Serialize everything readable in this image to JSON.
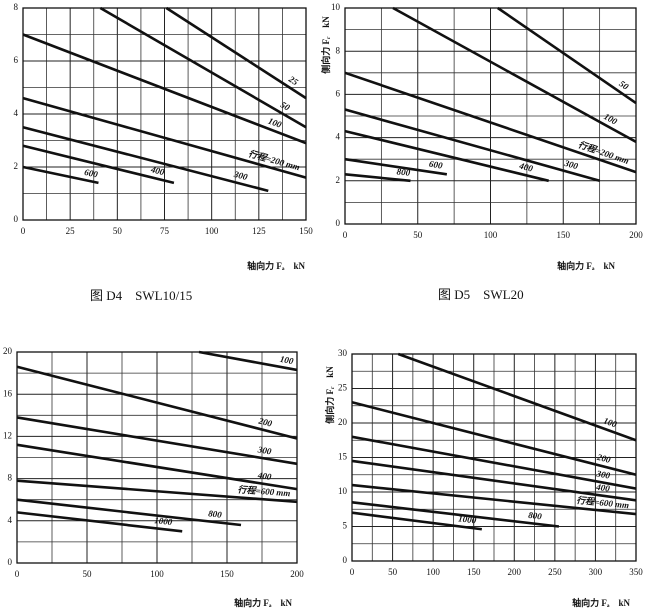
{
  "chart_data": [
    {
      "type": "line",
      "caption": "图 D4　SWL10/15",
      "x_label": "轴向力 Fₐ　kN",
      "xlim": [
        0,
        150
      ],
      "ylim": [
        0,
        8
      ],
      "xticks": [
        0,
        25,
        50,
        75,
        100,
        125,
        150
      ],
      "yticks": [
        0,
        2,
        4,
        6,
        8
      ],
      "grid": true,
      "color": "#111111",
      "series": [
        {
          "name": "25",
          "x": [
            76,
            150
          ],
          "values": [
            8,
            4.6
          ]
        },
        {
          "name": "50",
          "x": [
            41,
            150
          ],
          "values": [
            8,
            3.5
          ]
        },
        {
          "name": "100",
          "x": [
            0,
            150
          ],
          "values": [
            7.0,
            2.9
          ]
        },
        {
          "name": "行程=200 mm",
          "x": [
            0,
            150
          ],
          "values": [
            4.6,
            1.6
          ]
        },
        {
          "name": "300",
          "x": [
            0,
            130
          ],
          "values": [
            3.5,
            1.1
          ]
        },
        {
          "name": "400",
          "x": [
            0,
            80
          ],
          "values": [
            2.8,
            1.4
          ]
        },
        {
          "name": "600",
          "x": [
            0,
            40
          ],
          "values": [
            2.0,
            1.4
          ]
        }
      ]
    },
    {
      "type": "line",
      "caption": "图 D5　SWL20",
      "x_label": "轴向力 Fₐ　kN",
      "y_label": "侧向力 Fᵣ　kN",
      "xlim": [
        0,
        200
      ],
      "ylim": [
        0,
        10
      ],
      "xticks": [
        0,
        50,
        100,
        150,
        200
      ],
      "yticks": [
        0,
        2,
        4,
        6,
        8,
        10
      ],
      "grid": true,
      "color": "#111111",
      "series": [
        {
          "name": "50",
          "x": [
            105,
            200
          ],
          "values": [
            10,
            5.6
          ]
        },
        {
          "name": "100",
          "x": [
            33,
            200
          ],
          "values": [
            10,
            3.8
          ]
        },
        {
          "name": "行程=200 mm",
          "x": [
            0,
            200
          ],
          "values": [
            7.0,
            2.4
          ]
        },
        {
          "name": "300",
          "x": [
            0,
            175
          ],
          "values": [
            5.3,
            2.0
          ]
        },
        {
          "name": "400",
          "x": [
            0,
            140
          ],
          "values": [
            4.3,
            2.0
          ]
        },
        {
          "name": "600",
          "x": [
            0,
            70
          ],
          "values": [
            3.0,
            2.3
          ]
        },
        {
          "name": "800",
          "x": [
            0,
            45
          ],
          "values": [
            2.3,
            2.0
          ]
        }
      ]
    },
    {
      "type": "line",
      "x_label": "轴向力 Fₐ　kN",
      "xlim": [
        0,
        200
      ],
      "ylim": [
        0,
        20
      ],
      "xticks": [
        0,
        50,
        100,
        150,
        200
      ],
      "yticks": [
        0,
        4,
        8,
        12,
        16,
        20
      ],
      "grid": true,
      "color": "#111111",
      "series": [
        {
          "name": "100",
          "x": [
            130,
            200
          ],
          "values": [
            20,
            18.3
          ]
        },
        {
          "name": "200",
          "x": [
            0,
            200
          ],
          "values": [
            18.6,
            11.8
          ]
        },
        {
          "name": "300",
          "x": [
            0,
            200
          ],
          "values": [
            13.8,
            9.4
          ]
        },
        {
          "name": "400",
          "x": [
            0,
            200
          ],
          "values": [
            11.2,
            7.0
          ]
        },
        {
          "name": "行程=600 mm",
          "x": [
            0,
            200
          ],
          "values": [
            7.8,
            5.8
          ]
        },
        {
          "name": "800",
          "x": [
            0,
            160
          ],
          "values": [
            6.0,
            3.6
          ]
        },
        {
          "name": "1000",
          "x": [
            0,
            118
          ],
          "values": [
            4.8,
            3.0
          ]
        }
      ]
    },
    {
      "type": "line",
      "x_label": "轴向力 Fₐ　kN",
      "y_label": "侧向力 Fᵣ　kN",
      "xlim": [
        0,
        350
      ],
      "ylim": [
        0,
        30
      ],
      "xticks": [
        0,
        50,
        100,
        150,
        200,
        250,
        300,
        350
      ],
      "yticks": [
        0,
        5,
        10,
        15,
        20,
        25,
        30
      ],
      "grid": true,
      "color": "#111111",
      "series": [
        {
          "name": "100",
          "x": [
            57,
            350
          ],
          "values": [
            30,
            17.5
          ]
        },
        {
          "name": "200",
          "x": [
            0,
            350
          ],
          "values": [
            23,
            12.5
          ]
        },
        {
          "name": "300",
          "x": [
            0,
            350
          ],
          "values": [
            18,
            10.5
          ]
        },
        {
          "name": "400",
          "x": [
            0,
            350
          ],
          "values": [
            14.5,
            8.8
          ]
        },
        {
          "name": "行程=600 mm",
          "x": [
            0,
            350
          ],
          "values": [
            11,
            6.8
          ]
        },
        {
          "name": "800",
          "x": [
            0,
            255
          ],
          "values": [
            8.5,
            5.0
          ]
        },
        {
          "name": "1000",
          "x": [
            0,
            160
          ],
          "values": [
            7,
            4.6
          ]
        }
      ]
    }
  ]
}
